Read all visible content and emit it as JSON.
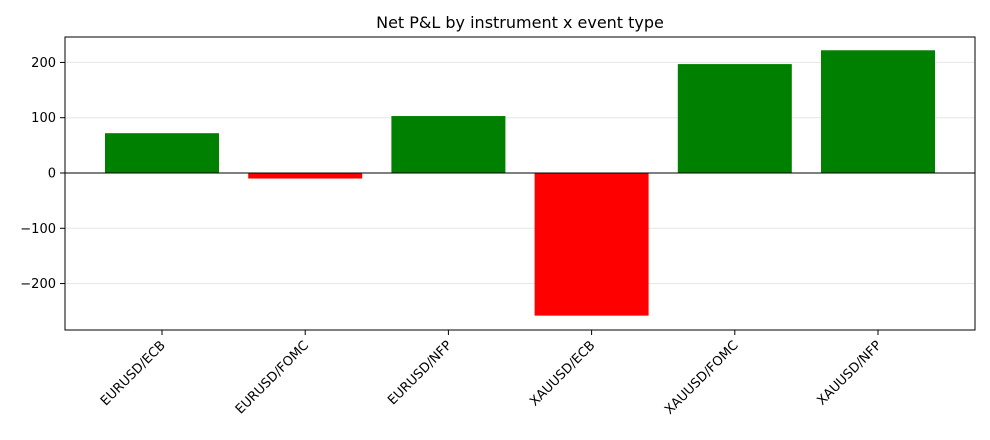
{
  "chart_data": {
    "type": "bar",
    "title": "Net P&L by instrument x event type",
    "xlabel": "",
    "ylabel": "",
    "categories": [
      "EURUSD/ECB",
      "EURUSD/FOMC",
      "EURUSD/NFP",
      "XAUUSD/ECB",
      "XAUUSD/FOMC",
      "XAUUSD/NFP"
    ],
    "values": [
      72,
      -10,
      103,
      -258,
      197,
      222
    ],
    "bar_colors": [
      "#008000",
      "#ff0000",
      "#008000",
      "#ff0000",
      "#008000",
      "#008000"
    ],
    "positive_color": "#008000",
    "negative_color": "#ff0000",
    "ylim": [
      -284,
      246
    ],
    "yticks": [
      -200,
      -100,
      0,
      100,
      200
    ],
    "ytick_labels": [
      "−200",
      "−100",
      "0",
      "100",
      "200"
    ],
    "grid": "horizontal",
    "zero_line": true,
    "legend": "none"
  }
}
